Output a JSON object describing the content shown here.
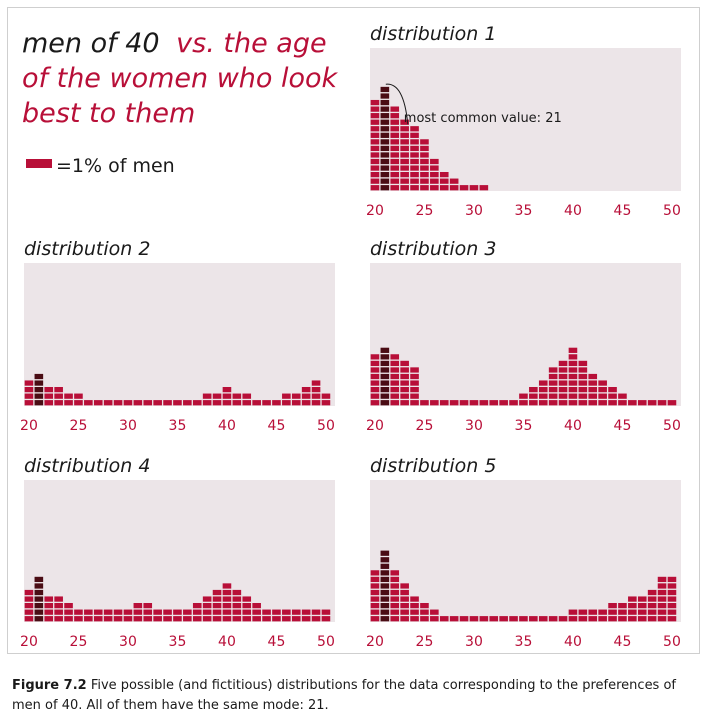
{
  "title": {
    "part1": "men of 40",
    "part2": "vs. the age",
    "line2": "of the women who look",
    "line3": "best to them"
  },
  "legend": {
    "text": "=1% of men"
  },
  "annotation": {
    "text": "most common value: 21"
  },
  "caption": {
    "label": "Figure 7.2",
    "text": " Five possible (and fictitious) distributions for the data corresponding to the preferences of men of 40. All of them have the same mode: 21."
  },
  "colors": {
    "bar": "#b80f38",
    "mode_bar": "#4a0c14",
    "panel_bg": "#ece5e8",
    "title_dark": "#1a1a1a",
    "title_accent": "#b80f38",
    "tick": "#b80f38"
  },
  "chart_data": [
    {
      "type": "bar",
      "title": "distribution 1",
      "x": [
        20,
        21,
        22,
        23,
        24,
        25,
        26,
        27,
        28,
        29,
        30,
        31
      ],
      "values": [
        14,
        16,
        13,
        11,
        10,
        8,
        5,
        3,
        2,
        1,
        1,
        1
      ],
      "xticks": [
        20,
        25,
        30,
        35,
        40,
        45,
        50
      ],
      "xlim": [
        20,
        50
      ],
      "mode": 21,
      "unit": "% of men"
    },
    {
      "type": "bar",
      "title": "distribution 2",
      "x": [
        20,
        21,
        22,
        23,
        24,
        25,
        26,
        27,
        28,
        29,
        30,
        31,
        32,
        33,
        34,
        35,
        36,
        37,
        38,
        39,
        40,
        41,
        42,
        43,
        44,
        45,
        46,
        47,
        48,
        49,
        50
      ],
      "values": [
        4,
        5,
        3,
        3,
        2,
        2,
        1,
        1,
        1,
        1,
        1,
        1,
        1,
        1,
        1,
        1,
        1,
        1,
        2,
        2,
        3,
        2,
        2,
        1,
        1,
        1,
        2,
        2,
        3,
        4,
        2
      ],
      "xticks": [
        20,
        25,
        30,
        35,
        40,
        45,
        50
      ],
      "xlim": [
        20,
        50
      ],
      "mode": 21,
      "unit": "% of men"
    },
    {
      "type": "bar",
      "title": "distribution 3",
      "x": [
        20,
        21,
        22,
        23,
        24,
        25,
        26,
        27,
        28,
        29,
        30,
        31,
        32,
        33,
        34,
        35,
        36,
        37,
        38,
        39,
        40,
        41,
        42,
        43,
        44,
        45,
        46,
        47,
        48,
        49,
        50
      ],
      "values": [
        8,
        9,
        8,
        7,
        6,
        1,
        1,
        1,
        1,
        1,
        1,
        1,
        1,
        1,
        1,
        2,
        3,
        4,
        6,
        7,
        9,
        7,
        5,
        4,
        3,
        2,
        1,
        1,
        1,
        1,
        1
      ],
      "xticks": [
        20,
        25,
        30,
        35,
        40,
        45,
        50
      ],
      "xlim": [
        20,
        50
      ],
      "mode": 21,
      "unit": "% of men"
    },
    {
      "type": "bar",
      "title": "distribution 4",
      "x": [
        20,
        21,
        22,
        23,
        24,
        25,
        26,
        27,
        28,
        29,
        30,
        31,
        32,
        33,
        34,
        35,
        36,
        37,
        38,
        39,
        40,
        41,
        42,
        43,
        44,
        45,
        46,
        47,
        48,
        49,
        50
      ],
      "values": [
        5,
        7,
        4,
        4,
        3,
        2,
        2,
        2,
        2,
        2,
        2,
        3,
        3,
        2,
        2,
        2,
        2,
        3,
        4,
        5,
        6,
        5,
        4,
        3,
        2,
        2,
        2,
        2,
        2,
        2,
        2
      ],
      "xticks": [
        20,
        25,
        30,
        35,
        40,
        45,
        50
      ],
      "xlim": [
        20,
        50
      ],
      "mode": 21,
      "unit": "% of men"
    },
    {
      "type": "bar",
      "title": "distribution 5",
      "x": [
        20,
        21,
        22,
        23,
        24,
        25,
        26,
        27,
        28,
        29,
        30,
        31,
        32,
        33,
        34,
        35,
        36,
        37,
        38,
        39,
        40,
        41,
        42,
        43,
        44,
        45,
        46,
        47,
        48,
        49,
        50
      ],
      "values": [
        8,
        11,
        8,
        6,
        4,
        3,
        2,
        1,
        1,
        1,
        1,
        1,
        1,
        1,
        1,
        1,
        1,
        1,
        1,
        1,
        2,
        2,
        2,
        2,
        3,
        3,
        4,
        4,
        5,
        7,
        7
      ],
      "xticks": [
        20,
        25,
        30,
        35,
        40,
        45,
        50
      ],
      "xlim": [
        20,
        50
      ],
      "mode": 21,
      "unit": "% of men"
    }
  ]
}
